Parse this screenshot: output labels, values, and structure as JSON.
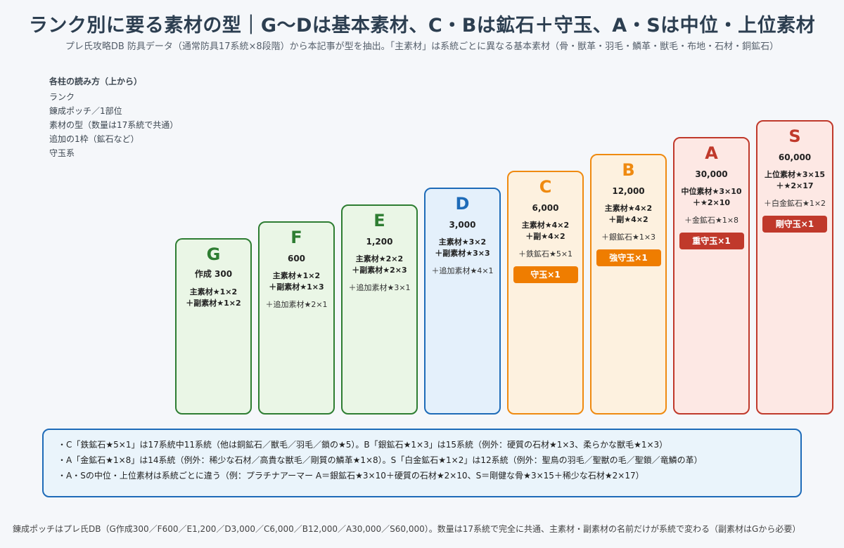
{
  "title": "ランク別に要る素材の型｜G〜Dは基本素材、C・Bは鉱石＋守玉、A・Sは中位・上位素材",
  "subtitle": "プレ氏攻略DB 防具データ（通常防具17系統×8段階）から本記事が型を抽出。「主素材」は系統ごとに異なる基本素材（骨・獣革・羽毛・鱗革・獣毛・布地・石材・銅鉱石）",
  "legend": {
    "title": "各柱の読み方（上から）",
    "items": [
      "ランク",
      "錬成ポッチ／1部位",
      "素材の型（数量は17系統で共通）",
      "追加の1枠（鉱石など）",
      "守玉系"
    ]
  },
  "columns": [
    {
      "rank": "G",
      "pot": "作成 300",
      "mat1": "主素材★1×2",
      "mat2": "＋副素材★1×2",
      "extra": "",
      "gem": "",
      "color": "#2e7d32"
    },
    {
      "rank": "F",
      "pot": "600",
      "mat1": "主素材★1×2",
      "mat2": "＋副素材★1×3",
      "extra": "＋追加素材★2×1",
      "gem": "",
      "color": "#2e7d32"
    },
    {
      "rank": "E",
      "pot": "1,200",
      "mat1": "主素材★2×2",
      "mat2": "＋副素材★2×3",
      "extra": "＋追加素材★3×1",
      "gem": "",
      "color": "#2e7d32"
    },
    {
      "rank": "D",
      "pot": "3,000",
      "mat1": "主素材★3×2",
      "mat2": "＋副素材★3×3",
      "extra": "＋追加素材★4×1",
      "gem": "",
      "color": "#1e6bb8"
    },
    {
      "rank": "C",
      "pot": "6,000",
      "mat1": "主素材★4×2",
      "mat2": "＋副★4×2",
      "extra": "＋鉄鉱石★5×1",
      "gem": "守玉×1",
      "color": "#ef8a10"
    },
    {
      "rank": "B",
      "pot": "12,000",
      "mat1": "主素材★4×2",
      "mat2": "＋副★4×2",
      "extra": "＋銀鉱石★1×3",
      "gem": "強守玉×1",
      "color": "#ef8a10"
    },
    {
      "rank": "A",
      "pot": "30,000",
      "mat1": "中位素材★3×10",
      "mat2": "＋★2×10",
      "extra": "＋金鉱石★1×8",
      "gem": "重守玉×1",
      "color": "#c0392b"
    },
    {
      "rank": "S",
      "pot": "60,000",
      "mat1": "上位素材★3×15",
      "mat2": "＋★2×17",
      "extra": "＋白金鉱石★1×2",
      "gem": "剛守玉×1",
      "color": "#c0392b"
    }
  ],
  "notes": [
    "・C「鉄鉱石★5×1」は17系統中11系統（他は銅鉱石／獣毛／羽毛／鎖の★5）。B「銀鉱石★1×3」は15系統（例外：硬質の石材★1×3、柔らかな獣毛★1×3）",
    "・A「金鉱石★1×8」は14系統（例外：稀少な石材／高貴な獣毛／剛質の鱗革★1×8）。S「白金鉱石★1×2」は12系統（例外：聖鳥の羽毛／聖獣の毛／聖鎖／竜鱗の革）",
    "・A・Sの中位・上位素材は系統ごとに違う（例：プラチナアーマー A＝銀鉱石★3×10＋硬質の石材★2×10、S＝剛健な骨★3×15＋稀少な石材★2×17）"
  ],
  "footer": "錬成ポッチはプレ氏DB（G作成300／F600／E1,200／D3,000／C6,000／B12,000／A30,000／S60,000）。数量は17系統で完全に共通、主素材・副素材の名前だけが系統で変わる（副素材はGから必要）"
}
